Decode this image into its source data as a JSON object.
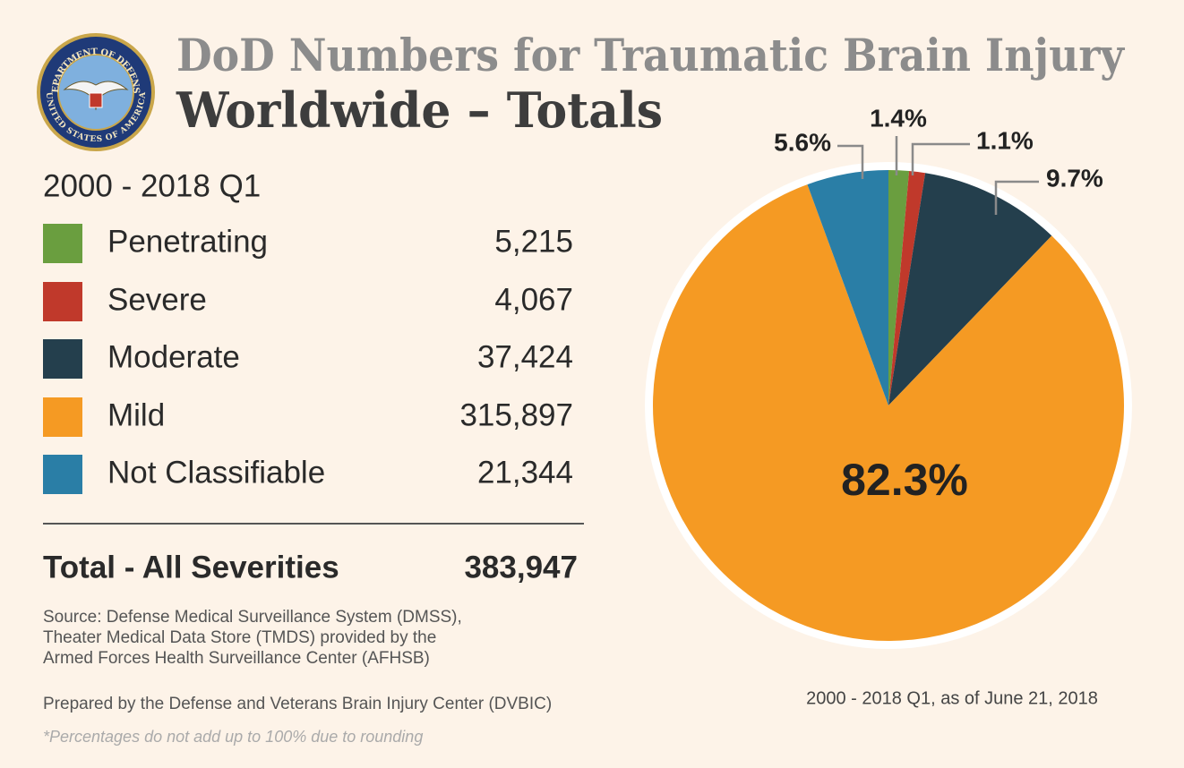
{
  "header": {
    "seal_top": "DEPARTMENT OF DEFENSE",
    "seal_bottom": "UNITED STATES OF AMERICA",
    "title": "DoD Numbers for Traumatic Brain Injury",
    "subtitle": "Worldwide – Totals"
  },
  "period": "2000 - 2018 Q1",
  "table": {
    "counts": [
      "5,215",
      "4,067",
      "37,424",
      "315,897",
      "21,344"
    ],
    "total_label": "Total - All Severities",
    "total": "383,947"
  },
  "source": [
    "Source: Defense Medical Surveillance System (DMSS),",
    "Theater Medical Data Store (TMDS) provided by the",
    "Armed Forces Health Surveillance Center (AFHSB)"
  ],
  "prepared": "Prepared by the Defense and Veterans Brain Injury Center (DVBIC)",
  "footnote": "*Percentages do not add up to 100% due to rounding",
  "chart_data": {
    "type": "pie",
    "categories": [
      "Penetrating",
      "Severe",
      "Moderate",
      "Mild",
      "Not Classifiable"
    ],
    "values": [
      1.4,
      1.1,
      9.7,
      82.3,
      5.6
    ],
    "value_labels": [
      "1.4%",
      "1.1%",
      "9.7%",
      "82.3%",
      "5.6%"
    ],
    "colors": [
      "#6a9e3f",
      "#c0392b",
      "#243f4d",
      "#f59a23",
      "#2a7ea6"
    ],
    "caption": "2000 - 2018 Q1, as of June 21, 2018"
  }
}
